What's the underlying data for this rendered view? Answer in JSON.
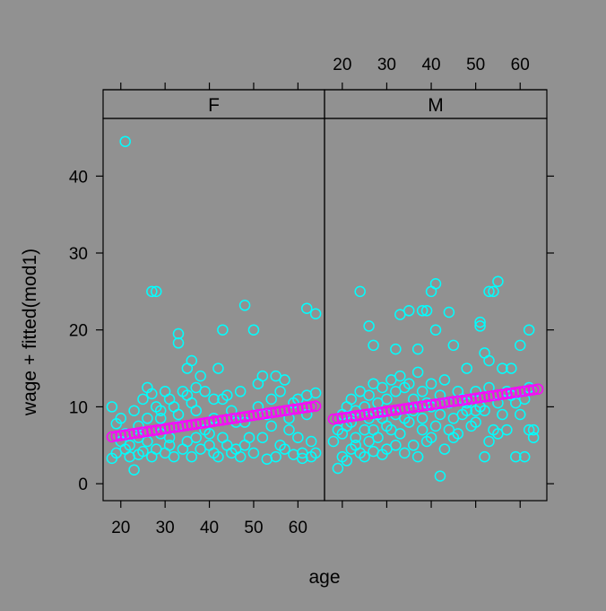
{
  "chart_data": {
    "type": "scatter",
    "xlabel": "age",
    "ylabel": "wage + fitted(mod1)",
    "xlim": [
      16,
      66
    ],
    "ylim": [
      -2.2,
      47.5
    ],
    "x_ticks": [
      20,
      30,
      40,
      50,
      60
    ],
    "y_ticks": [
      0,
      10,
      20,
      30,
      40
    ],
    "grid": false,
    "legend": "none",
    "colors": {
      "background": "#919191",
      "wage_points": "#00ffff",
      "fitted_points": "#ff00ff",
      "frame": "#000000"
    },
    "panels": [
      {
        "strip_label": "F",
        "fitted": {
          "age_range": [
            18,
            64
          ],
          "value_at_min_age": 6.1,
          "value_at_max_age": 10.1
        },
        "wage": [
          [
            21,
            44.5
          ],
          [
            27,
            25
          ],
          [
            28,
            25
          ],
          [
            33,
            19.5
          ],
          [
            33,
            18.3
          ],
          [
            48,
            23.2
          ],
          [
            62,
            22.8
          ],
          [
            64,
            22.1
          ],
          [
            43,
            20
          ],
          [
            50,
            20
          ],
          [
            36,
            16
          ],
          [
            35,
            15
          ],
          [
            42,
            15
          ],
          [
            38,
            14
          ],
          [
            52,
            14
          ],
          [
            55,
            14
          ],
          [
            57,
            13.5
          ],
          [
            18,
            10
          ],
          [
            19,
            7.8
          ],
          [
            20,
            8.5
          ],
          [
            22,
            5
          ],
          [
            23,
            9.5
          ],
          [
            24,
            6
          ],
          [
            25,
            11
          ],
          [
            26,
            12.5
          ],
          [
            27,
            11.7
          ],
          [
            28,
            10
          ],
          [
            29,
            8.5
          ],
          [
            30,
            12
          ],
          [
            31,
            6
          ],
          [
            32,
            10
          ],
          [
            34,
            12
          ],
          [
            36,
            10.5
          ],
          [
            37,
            12.5
          ],
          [
            39,
            7
          ],
          [
            40,
            5
          ],
          [
            41,
            11
          ],
          [
            43,
            6
          ],
          [
            44,
            11.5
          ],
          [
            45,
            4
          ],
          [
            46,
            8
          ],
          [
            47,
            12
          ],
          [
            49,
            6
          ],
          [
            51,
            13
          ],
          [
            53,
            9
          ],
          [
            54,
            11
          ],
          [
            56,
            5
          ],
          [
            58,
            7
          ],
          [
            59,
            10.5
          ],
          [
            60,
            6
          ],
          [
            61,
            4
          ],
          [
            62,
            11.5
          ],
          [
            63,
            5.5
          ],
          [
            64,
            4
          ],
          [
            20,
            5.5
          ],
          [
            21,
            4.5
          ],
          [
            22,
            3.5
          ],
          [
            23,
            1.8
          ],
          [
            24,
            3.8
          ],
          [
            25,
            4.2
          ],
          [
            26,
            5.5
          ],
          [
            27,
            3.5
          ],
          [
            28,
            4.5
          ],
          [
            29,
            6.5
          ],
          [
            30,
            4
          ],
          [
            31,
            5
          ],
          [
            32,
            3.5
          ],
          [
            33,
            7.5
          ],
          [
            34,
            4.5
          ],
          [
            35,
            5.5
          ],
          [
            36,
            3.5
          ],
          [
            37,
            6
          ],
          [
            38,
            4.5
          ],
          [
            40,
            6.5
          ],
          [
            41,
            4
          ],
          [
            42,
            3.5
          ],
          [
            44,
            5
          ],
          [
            46,
            4.5
          ],
          [
            47,
            3.5
          ],
          [
            48,
            5
          ],
          [
            50,
            4
          ],
          [
            52,
            6
          ],
          [
            53,
            3.2
          ],
          [
            55,
            3.5
          ],
          [
            57,
            4.5
          ],
          [
            59,
            3.8
          ],
          [
            61,
            3.3
          ],
          [
            63,
            3.5
          ],
          [
            18,
            3.3
          ],
          [
            19,
            4
          ],
          [
            21,
            6.5
          ],
          [
            24,
            7.5
          ],
          [
            26,
            8.5
          ],
          [
            29,
            9.5
          ],
          [
            31,
            11
          ],
          [
            33,
            9
          ],
          [
            35,
            11.5
          ],
          [
            37,
            9.5
          ],
          [
            39,
            12
          ],
          [
            41,
            8.5
          ],
          [
            43,
            11
          ],
          [
            45,
            9.5
          ],
          [
            48,
            8
          ],
          [
            51,
            10
          ],
          [
            54,
            7.5
          ],
          [
            56,
            12
          ],
          [
            58,
            8.5
          ],
          [
            60,
            11
          ],
          [
            62,
            9
          ],
          [
            64,
            11.8
          ]
        ]
      },
      {
        "strip_label": "M",
        "fitted": {
          "age_range": [
            18,
            64
          ],
          "value_at_min_age": 8.4,
          "value_at_max_age": 12.3
        },
        "wage": [
          [
            24,
            25
          ],
          [
            40,
            25
          ],
          [
            41,
            26
          ],
          [
            53,
            25
          ],
          [
            54,
            25
          ],
          [
            55,
            26.3
          ],
          [
            26,
            20.5
          ],
          [
            33,
            22
          ],
          [
            35,
            22.5
          ],
          [
            38,
            22.5
          ],
          [
            39,
            22.5
          ],
          [
            44,
            22.3
          ],
          [
            51,
            21
          ],
          [
            51,
            20.5
          ],
          [
            62,
            20
          ],
          [
            27,
            18
          ],
          [
            32,
            17.5
          ],
          [
            37,
            17.5
          ],
          [
            41,
            20
          ],
          [
            45,
            18
          ],
          [
            48,
            15
          ],
          [
            52,
            17
          ],
          [
            53,
            16
          ],
          [
            56,
            15
          ],
          [
            58,
            15
          ],
          [
            60,
            18
          ],
          [
            42,
            1
          ],
          [
            19,
            2
          ],
          [
            20,
            3.5
          ],
          [
            21,
            3
          ],
          [
            22,
            4.5
          ],
          [
            23,
            5
          ],
          [
            24,
            4
          ],
          [
            25,
            3.5
          ],
          [
            26,
            5.5
          ],
          [
            27,
            4.2
          ],
          [
            28,
            6
          ],
          [
            29,
            3.8
          ],
          [
            30,
            4.5
          ],
          [
            31,
            7
          ],
          [
            32,
            5
          ],
          [
            33,
            6.5
          ],
          [
            34,
            4
          ],
          [
            35,
            8
          ],
          [
            36,
            5
          ],
          [
            37,
            3.5
          ],
          [
            38,
            7
          ],
          [
            39,
            5.5
          ],
          [
            40,
            6
          ],
          [
            41,
            7.5
          ],
          [
            43,
            4.5
          ],
          [
            44,
            7
          ],
          [
            45,
            6
          ],
          [
            46,
            6.5
          ],
          [
            47,
            9
          ],
          [
            49,
            7.5
          ],
          [
            50,
            9.5
          ],
          [
            52,
            3.5
          ],
          [
            53,
            5.5
          ],
          [
            54,
            7
          ],
          [
            55,
            6.5
          ],
          [
            57,
            7
          ],
          [
            59,
            3.5
          ],
          [
            61,
            3.5
          ],
          [
            62,
            7
          ],
          [
            63,
            6
          ],
          [
            18,
            5.5
          ],
          [
            19,
            7
          ],
          [
            20,
            9
          ],
          [
            21,
            10
          ],
          [
            22,
            11
          ],
          [
            23,
            9.5
          ],
          [
            24,
            12
          ],
          [
            25,
            10
          ],
          [
            26,
            11.5
          ],
          [
            27,
            13
          ],
          [
            28,
            10.5
          ],
          [
            29,
            12.5
          ],
          [
            30,
            11
          ],
          [
            31,
            13.5
          ],
          [
            32,
            12
          ],
          [
            33,
            14
          ],
          [
            34,
            12.5
          ],
          [
            35,
            13
          ],
          [
            36,
            11
          ],
          [
            37,
            14.5
          ],
          [
            38,
            12
          ],
          [
            39,
            10.5
          ],
          [
            40,
            13
          ],
          [
            42,
            11.5
          ],
          [
            43,
            13.5
          ],
          [
            44,
            10.5
          ],
          [
            46,
            12
          ],
          [
            47,
            11
          ],
          [
            48,
            10.5
          ],
          [
            50,
            12
          ],
          [
            51,
            10
          ],
          [
            53,
            12.5
          ],
          [
            55,
            10.5
          ],
          [
            57,
            12
          ],
          [
            58,
            11.5
          ],
          [
            60,
            9
          ],
          [
            62,
            12.5
          ],
          [
            63,
            7
          ],
          [
            20,
            6.5
          ],
          [
            21,
            7.5
          ],
          [
            22,
            8
          ],
          [
            23,
            6
          ],
          [
            25,
            7
          ],
          [
            26,
            8.5
          ],
          [
            27,
            7
          ],
          [
            28,
            9
          ],
          [
            29,
            8.5
          ],
          [
            30,
            7.5
          ],
          [
            32,
            9
          ],
          [
            34,
            8.5
          ],
          [
            36,
            9.5
          ],
          [
            38,
            8.5
          ],
          [
            40,
            10
          ],
          [
            42,
            9
          ],
          [
            45,
            8.5
          ],
          [
            48,
            9.5
          ],
          [
            50,
            8
          ],
          [
            52,
            9.5
          ],
          [
            56,
            9
          ],
          [
            59,
            10.5
          ],
          [
            61,
            11
          ]
        ]
      }
    ]
  }
}
